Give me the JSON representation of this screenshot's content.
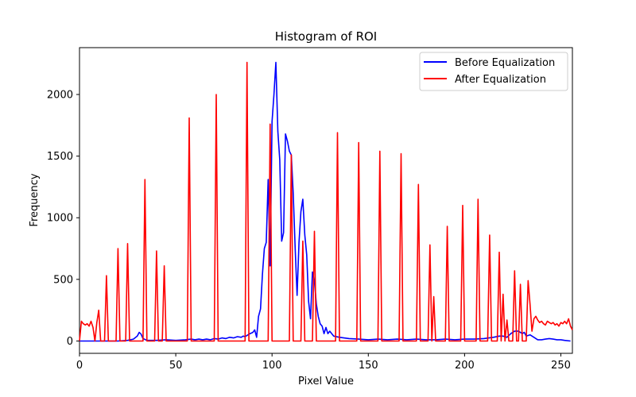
{
  "chart_data": {
    "type": "line",
    "title": "Histogram of ROI",
    "xlabel": "Pixel Value",
    "ylabel": "Frequency",
    "xlim": [
      0,
      256
    ],
    "ylim": [
      -100,
      2380
    ],
    "xticks": [
      0,
      50,
      100,
      150,
      200,
      250
    ],
    "yticks": [
      0,
      500,
      1000,
      1500,
      2000
    ],
    "grid": false,
    "legend_position": "top-right",
    "series": [
      {
        "name": "Before Equalization",
        "color": "#0000ff",
        "points": [
          [
            0,
            0
          ],
          [
            10,
            0
          ],
          [
            20,
            0
          ],
          [
            25,
            5
          ],
          [
            28,
            15
          ],
          [
            30,
            40
          ],
          [
            31,
            70
          ],
          [
            32,
            55
          ],
          [
            33,
            20
          ],
          [
            35,
            5
          ],
          [
            40,
            5
          ],
          [
            45,
            10
          ],
          [
            50,
            5
          ],
          [
            55,
            10
          ],
          [
            58,
            15
          ],
          [
            60,
            10
          ],
          [
            62,
            15
          ],
          [
            64,
            10
          ],
          [
            66,
            15
          ],
          [
            68,
            10
          ],
          [
            70,
            20
          ],
          [
            72,
            15
          ],
          [
            74,
            25
          ],
          [
            76,
            20
          ],
          [
            78,
            30
          ],
          [
            80,
            25
          ],
          [
            82,
            35
          ],
          [
            84,
            30
          ],
          [
            85,
            40
          ],
          [
            86,
            35
          ],
          [
            88,
            55
          ],
          [
            90,
            70
          ],
          [
            91,
            90
          ],
          [
            92,
            30
          ],
          [
            93,
            200
          ],
          [
            94,
            260
          ],
          [
            95,
            540
          ],
          [
            96,
            750
          ],
          [
            97,
            800
          ],
          [
            98,
            1310
          ],
          [
            99,
            610
          ],
          [
            100,
            1780
          ],
          [
            101,
            2000
          ],
          [
            102,
            2260
          ],
          [
            103,
            1700
          ],
          [
            104,
            1470
          ],
          [
            105,
            810
          ],
          [
            106,
            880
          ],
          [
            107,
            1680
          ],
          [
            108,
            1620
          ],
          [
            109,
            1540
          ],
          [
            110,
            1510
          ],
          [
            111,
            1200
          ],
          [
            112,
            750
          ],
          [
            113,
            370
          ],
          [
            114,
            800
          ],
          [
            115,
            1050
          ],
          [
            116,
            1150
          ],
          [
            117,
            860
          ],
          [
            118,
            700
          ],
          [
            119,
            320
          ],
          [
            120,
            180
          ],
          [
            121,
            560
          ],
          [
            122,
            490
          ],
          [
            123,
            300
          ],
          [
            124,
            200
          ],
          [
            125,
            140
          ],
          [
            126,
            120
          ],
          [
            127,
            60
          ],
          [
            128,
            110
          ],
          [
            129,
            60
          ],
          [
            130,
            80
          ],
          [
            132,
            40
          ],
          [
            135,
            30
          ],
          [
            140,
            20
          ],
          [
            145,
            15
          ],
          [
            150,
            10
          ],
          [
            155,
            15
          ],
          [
            160,
            10
          ],
          [
            165,
            15
          ],
          [
            170,
            10
          ],
          [
            175,
            15
          ],
          [
            180,
            10
          ],
          [
            185,
            10
          ],
          [
            190,
            15
          ],
          [
            195,
            10
          ],
          [
            200,
            15
          ],
          [
            205,
            15
          ],
          [
            210,
            20
          ],
          [
            215,
            30
          ],
          [
            218,
            40
          ],
          [
            220,
            40
          ],
          [
            222,
            30
          ],
          [
            224,
            60
          ],
          [
            226,
            80
          ],
          [
            228,
            80
          ],
          [
            230,
            60
          ],
          [
            231,
            70
          ],
          [
            232,
            40
          ],
          [
            234,
            50
          ],
          [
            236,
            30
          ],
          [
            238,
            10
          ],
          [
            240,
            10
          ],
          [
            242,
            15
          ],
          [
            244,
            20
          ],
          [
            246,
            15
          ],
          [
            248,
            10
          ],
          [
            250,
            10
          ],
          [
            252,
            5
          ],
          [
            255,
            0
          ]
        ]
      },
      {
        "name": "After Equalization",
        "color": "#ff0000",
        "points": [
          [
            0,
            0
          ],
          [
            1,
            160
          ],
          [
            2,
            140
          ],
          [
            3,
            130
          ],
          [
            4,
            140
          ],
          [
            5,
            120
          ],
          [
            6,
            160
          ],
          [
            7,
            110
          ],
          [
            8,
            0
          ],
          [
            9,
            150
          ],
          [
            10,
            250
          ],
          [
            11,
            0
          ],
          [
            13,
            0
          ],
          [
            14,
            530
          ],
          [
            15,
            0
          ],
          [
            19,
            0
          ],
          [
            20,
            750
          ],
          [
            21,
            0
          ],
          [
            24,
            0
          ],
          [
            25,
            790
          ],
          [
            26,
            0
          ],
          [
            33,
            0
          ],
          [
            34,
            1310
          ],
          [
            35,
            0
          ],
          [
            39,
            0
          ],
          [
            40,
            730
          ],
          [
            41,
            0
          ],
          [
            43,
            0
          ],
          [
            44,
            610
          ],
          [
            45,
            0
          ],
          [
            56,
            0
          ],
          [
            57,
            1810
          ],
          [
            58,
            0
          ],
          [
            70,
            0
          ],
          [
            71,
            2000
          ],
          [
            72,
            0
          ],
          [
            86,
            0
          ],
          [
            87,
            2260
          ],
          [
            88,
            0
          ],
          [
            98,
            0
          ],
          [
            99,
            1760
          ],
          [
            100,
            0
          ],
          [
            109,
            0
          ],
          [
            110,
            1510
          ],
          [
            111,
            0
          ],
          [
            115,
            0
          ],
          [
            116,
            810
          ],
          [
            117,
            0
          ],
          [
            121,
            0
          ],
          [
            122,
            890
          ],
          [
            123,
            0
          ],
          [
            133,
            0
          ],
          [
            134,
            1690
          ],
          [
            135,
            0
          ],
          [
            144,
            0
          ],
          [
            145,
            1610
          ],
          [
            146,
            0
          ],
          [
            155,
            0
          ],
          [
            156,
            1540
          ],
          [
            157,
            0
          ],
          [
            166,
            0
          ],
          [
            167,
            1520
          ],
          [
            168,
            0
          ],
          [
            175,
            0
          ],
          [
            176,
            1270
          ],
          [
            177,
            0
          ],
          [
            181,
            0
          ],
          [
            182,
            780
          ],
          [
            183,
            0
          ],
          [
            184,
            360
          ],
          [
            185,
            0
          ],
          [
            190,
            0
          ],
          [
            191,
            930
          ],
          [
            192,
            0
          ],
          [
            198,
            0
          ],
          [
            199,
            1100
          ],
          [
            200,
            0
          ],
          [
            206,
            0
          ],
          [
            207,
            1150
          ],
          [
            208,
            0
          ],
          [
            212,
            0
          ],
          [
            213,
            860
          ],
          [
            214,
            0
          ],
          [
            217,
            0
          ],
          [
            218,
            720
          ],
          [
            219,
            0
          ],
          [
            220,
            380
          ],
          [
            221,
            0
          ],
          [
            222,
            170
          ],
          [
            223,
            0
          ],
          [
            225,
            0
          ],
          [
            226,
            570
          ],
          [
            227,
            0
          ],
          [
            228,
            0
          ],
          [
            229,
            460
          ],
          [
            230,
            0
          ],
          [
            232,
            0
          ],
          [
            233,
            490
          ],
          [
            234,
            300
          ],
          [
            235,
            80
          ],
          [
            236,
            180
          ],
          [
            237,
            200
          ],
          [
            238,
            170
          ],
          [
            239,
            150
          ],
          [
            240,
            160
          ],
          [
            241,
            140
          ],
          [
            242,
            130
          ],
          [
            243,
            160
          ],
          [
            244,
            150
          ],
          [
            245,
            140
          ],
          [
            246,
            150
          ],
          [
            247,
            130
          ],
          [
            248,
            140
          ],
          [
            249,
            120
          ],
          [
            250,
            150
          ],
          [
            251,
            140
          ],
          [
            252,
            160
          ],
          [
            253,
            140
          ],
          [
            254,
            180
          ],
          [
            255,
            120
          ],
          [
            256,
            90
          ]
        ]
      }
    ]
  }
}
